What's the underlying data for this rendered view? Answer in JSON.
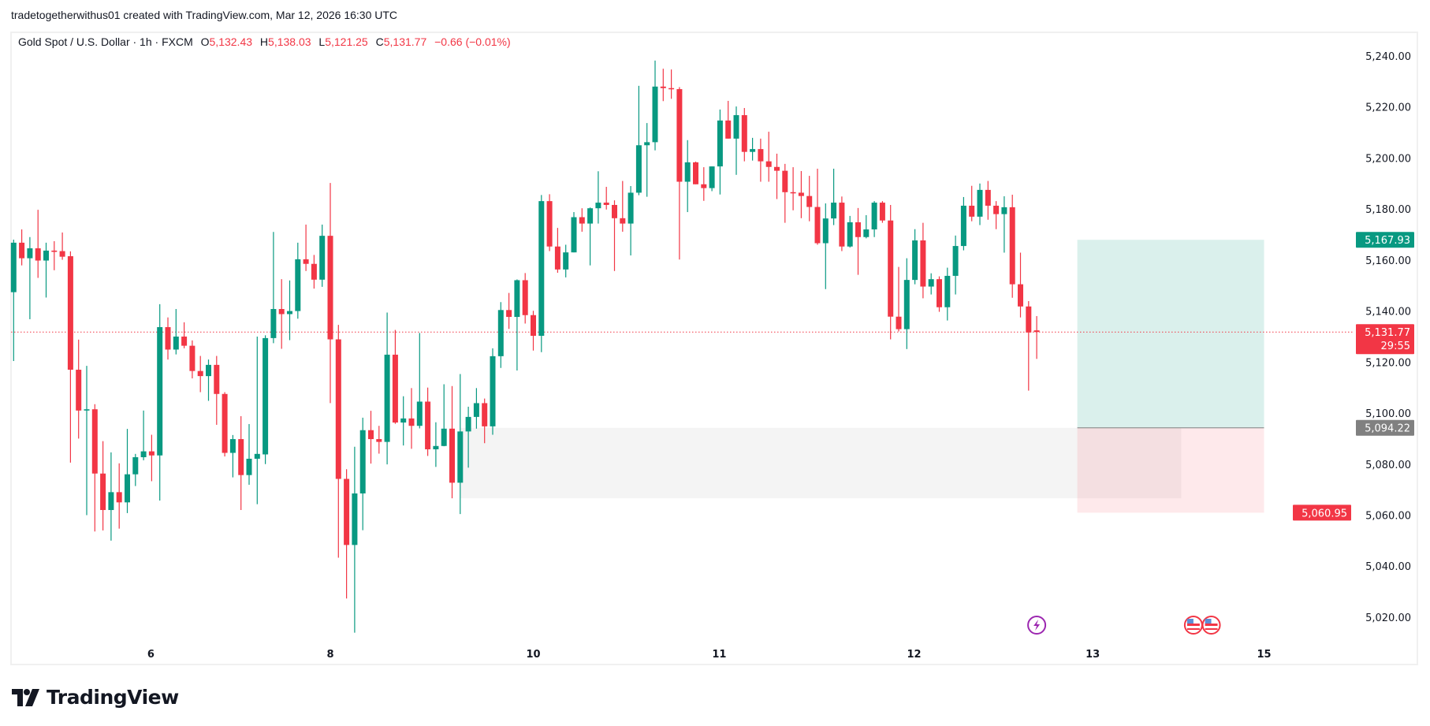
{
  "credit": "tradetogetherwithus01 created with TradingView.com, Mar 12, 2026 16:30 UTC",
  "legend": {
    "symbol": "Gold Spot / U.S. Dollar · 1h · FXCM",
    "o_label": "O",
    "o": "5,132.43",
    "h_label": "H",
    "h": "5,138.03",
    "l_label": "L",
    "l": "5,121.25",
    "c_label": "C",
    "c": "5,131.77",
    "change": "−0.66 (−0.01%)"
  },
  "logo": {
    "text": "TradingView"
  },
  "colors": {
    "up": "#089981",
    "down": "#F23645",
    "text": "#131722",
    "grid": "#f0f0f0",
    "entry": "#808080"
  },
  "chart_data": {
    "type": "candlestick",
    "symbol": "Gold Spot / U.S. Dollar",
    "interval": "1h",
    "ylim": [
      5010,
      5248
    ],
    "y_ticks": [
      "5,240.00",
      "5,220.00",
      "5,200.00",
      "5,180.00",
      "5,160.00",
      "5,140.00",
      "5,120.00",
      "5,100.00",
      "5,080.00",
      "5,060.00",
      "5,040.00",
      "5,020.00"
    ],
    "y_tick_values": [
      5240,
      5220,
      5200,
      5180,
      5160,
      5140,
      5120,
      5100,
      5080,
      5060,
      5040,
      5020
    ],
    "x_ticks": [
      {
        "label": "6",
        "bar": 16.9
      },
      {
        "label": "8",
        "bar": 39
      },
      {
        "label": "10",
        "bar": 64
      },
      {
        "label": "11",
        "bar": 86.9
      },
      {
        "label": "12",
        "bar": 110.9
      },
      {
        "label": "13",
        "bar": 132.9
      },
      {
        "label": "15",
        "bar": 154
      }
    ],
    "ohlc": [
      [
        5147.4,
        5168,
        5120.4,
        5166.8
      ],
      [
        5166.8,
        5172,
        5157.9,
        5160.7
      ],
      [
        5160.7,
        5169,
        5136.8,
        5164.6
      ],
      [
        5164.6,
        5179.7,
        5153,
        5159.8
      ],
      [
        5159.8,
        5166.8,
        5145.3,
        5163.7
      ],
      [
        5163.7,
        5167.4,
        5156,
        5163.2
      ],
      [
        5163.5,
        5170.8,
        5160.1,
        5161.3
      ],
      [
        5161.5,
        5163.4,
        5080.6,
        5117
      ],
      [
        5117,
        5128.8,
        5090,
        5101
      ],
      [
        5101,
        5118.5,
        5060,
        5101.5
      ],
      [
        5101.5,
        5103.5,
        5053.6,
        5076.3
      ],
      [
        5076.3,
        5089,
        5054,
        5062
      ],
      [
        5062,
        5084.6,
        5050,
        5069
      ],
      [
        5069,
        5080.3,
        5054.7,
        5065
      ],
      [
        5065,
        5093.8,
        5060.8,
        5076
      ],
      [
        5076,
        5084,
        5071.4,
        5082.7
      ],
      [
        5082.7,
        5101,
        5081.5,
        5085
      ],
      [
        5085,
        5091.5,
        5073.3,
        5083.4
      ],
      [
        5083.4,
        5142.7,
        5065.7,
        5133.7
      ],
      [
        5133.7,
        5137.5,
        5121,
        5124.9
      ],
      [
        5124.9,
        5140.8,
        5123,
        5130
      ],
      [
        5130,
        5135.6,
        5125.4,
        5126.4
      ],
      [
        5126.4,
        5128.5,
        5113.6,
        5116.5
      ],
      [
        5116.5,
        5122.4,
        5108.2,
        5114.5
      ],
      [
        5114.5,
        5121,
        5104.8,
        5118.9
      ],
      [
        5118.9,
        5122.4,
        5095.4,
        5107.5
      ],
      [
        5107.5,
        5108.2,
        5083,
        5084.4
      ],
      [
        5084.4,
        5091.4,
        5074.8,
        5089.8
      ],
      [
        5089.8,
        5098.8,
        5062,
        5075.7
      ],
      [
        5075.7,
        5095.7,
        5071.9,
        5082.1
      ],
      [
        5082.1,
        5130,
        5064.3,
        5084
      ],
      [
        5083.8,
        5130.5,
        5080,
        5129.4
      ],
      [
        5129.4,
        5171,
        5127.4,
        5140.8
      ],
      [
        5140.8,
        5152.5,
        5125.2,
        5138.8
      ],
      [
        5138.8,
        5152,
        5128.6,
        5140
      ],
      [
        5140,
        5166.8,
        5137,
        5160.3
      ],
      [
        5160.3,
        5173.9,
        5155.7,
        5158.5
      ],
      [
        5158.5,
        5162,
        5148.8,
        5152.3
      ],
      [
        5152.3,
        5173.9,
        5149.5,
        5169.5
      ],
      [
        5169.5,
        5190.2,
        5103.9,
        5128.9
      ],
      [
        5128.9,
        5134.6,
        5043.3,
        5074.2
      ],
      [
        5074.2,
        5078,
        5027.3,
        5048.3
      ],
      [
        5048.3,
        5086.8,
        5013.9,
        5068.5
      ],
      [
        5068.5,
        5098.2,
        5054.1,
        5093.3
      ],
      [
        5093.3,
        5100.9,
        5080.2,
        5089.8
      ],
      [
        5089.8,
        5095,
        5084.1,
        5088.7
      ],
      [
        5088.7,
        5139.4,
        5079.9,
        5122.9
      ],
      [
        5122.9,
        5132.6,
        5095.8,
        5096.3
      ],
      [
        5096.3,
        5106.6,
        5087.3,
        5097.9
      ],
      [
        5097.9,
        5109.8,
        5086,
        5095
      ],
      [
        5095,
        5131.4,
        5094,
        5104.5
      ],
      [
        5104.5,
        5110,
        5083.2,
        5085.8
      ],
      [
        5085.8,
        5096.4,
        5078.9,
        5087.1
      ],
      [
        5087.1,
        5111.3,
        5087,
        5093.9
      ],
      [
        5093.9,
        5110.6,
        5066.6,
        5072.7
      ],
      [
        5072.7,
        5115.3,
        5060.4,
        5092.8
      ],
      [
        5092.8,
        5102.5,
        5078.6,
        5098.5
      ],
      [
        5098.5,
        5109.8,
        5093.9,
        5103.9
      ],
      [
        5103.9,
        5105.7,
        5088.2,
        5094.8
      ],
      [
        5094.8,
        5125.4,
        5091.5,
        5122.3
      ],
      [
        5122.3,
        5143.5,
        5117.7,
        5140.4
      ],
      [
        5140.4,
        5147.1,
        5133,
        5137.7
      ],
      [
        5137.7,
        5152.4,
        5116.7,
        5152.1
      ],
      [
        5152.1,
        5154.9,
        5135.1,
        5138.4
      ],
      [
        5138.4,
        5140.1,
        5124.5,
        5130.3
      ],
      [
        5130.3,
        5185.5,
        5123.9,
        5183.1
      ],
      [
        5183.1,
        5185.8,
        5163.5,
        5165.3
      ],
      [
        5165.3,
        5172.6,
        5155,
        5156.3
      ],
      [
        5156.3,
        5166,
        5153.2,
        5163
      ],
      [
        5163,
        5178.8,
        5163,
        5176.8
      ],
      [
        5176.8,
        5180.3,
        5171.1,
        5174.3
      ],
      [
        5174.3,
        5180.6,
        5157.9,
        5180.3
      ],
      [
        5180.3,
        5194.8,
        5174.3,
        5182.5
      ],
      [
        5182.5,
        5188.7,
        5179.8,
        5181.6
      ],
      [
        5181.6,
        5183.4,
        5155.7,
        5176.4
      ],
      [
        5176.4,
        5191,
        5171.1,
        5174.3
      ],
      [
        5174.3,
        5189,
        5161.8,
        5186.4
      ],
      [
        5186.4,
        5228.3,
        5185.4,
        5205
      ],
      [
        5205,
        5213.7,
        5184.8,
        5206.2
      ],
      [
        5206.2,
        5238.2,
        5203,
        5228
      ],
      [
        5228,
        5235,
        5222.3,
        5227.4
      ],
      [
        5227.4,
        5234.7,
        5223.2,
        5227.2
      ],
      [
        5227,
        5227.8,
        5160.2,
        5190.7
      ],
      [
        5190.7,
        5207,
        5178.8,
        5198.3
      ],
      [
        5198.3,
        5198.6,
        5189.7,
        5189.7
      ],
      [
        5189.7,
        5196.4,
        5183.2,
        5188.2
      ],
      [
        5188.2,
        5196.7,
        5187,
        5196.7
      ],
      [
        5196.7,
        5219,
        5185.7,
        5214.7
      ],
      [
        5214.7,
        5222.4,
        5207.6,
        5207.6
      ],
      [
        5207.6,
        5220.2,
        5193.4,
        5216.8
      ],
      [
        5216.8,
        5219.6,
        5198.7,
        5202.4
      ],
      [
        5202.4,
        5207.9,
        5199,
        5203.5
      ],
      [
        5203.5,
        5207.6,
        5190.7,
        5198.7
      ],
      [
        5198.7,
        5210.3,
        5190.7,
        5196.5
      ],
      [
        5196.5,
        5201.7,
        5183.9,
        5195
      ],
      [
        5195,
        5197.7,
        5174.6,
        5186.6
      ],
      [
        5186.6,
        5196.4,
        5179.5,
        5186.4
      ],
      [
        5186.4,
        5194.9,
        5176.4,
        5185.1
      ],
      [
        5185.1,
        5193,
        5175.2,
        5180.8
      ],
      [
        5180.8,
        5195.8,
        5166,
        5166.6
      ],
      [
        5166.6,
        5182.2,
        5148.6,
        5176.3
      ],
      [
        5176.3,
        5195.8,
        5173.7,
        5182.5
      ],
      [
        5182.5,
        5184.9,
        5163.5,
        5165.3
      ],
      [
        5165.3,
        5177.3,
        5164.9,
        5174.8
      ],
      [
        5174.8,
        5180.4,
        5154.2,
        5169
      ],
      [
        5169,
        5177.6,
        5168.5,
        5172
      ],
      [
        5172,
        5183.1,
        5169,
        5182.5
      ],
      [
        5182.5,
        5183.1,
        5174.6,
        5175.5
      ],
      [
        5175.5,
        5181.6,
        5128.9,
        5137.8
      ],
      [
        5137.8,
        5157.3,
        5132,
        5132.9
      ],
      [
        5132.9,
        5160.7,
        5125.1,
        5152.2
      ],
      [
        5152.2,
        5172.1,
        5150.5,
        5167.7
      ],
      [
        5167.7,
        5174.6,
        5145,
        5149.6
      ],
      [
        5149.6,
        5154.8,
        5146.5,
        5152.5
      ],
      [
        5152.5,
        5153.6,
        5139.7,
        5141.5
      ],
      [
        5141.5,
        5157,
        5136.3,
        5153.8
      ],
      [
        5153.8,
        5169.6,
        5146.5,
        5165.5
      ],
      [
        5165.5,
        5184.7,
        5163.8,
        5181.3
      ],
      [
        5181.3,
        5189.1,
        5175.2,
        5177
      ],
      [
        5177,
        5190,
        5173.7,
        5187.5
      ],
      [
        5187.5,
        5191,
        5175.8,
        5181.3
      ],
      [
        5181.3,
        5183.1,
        5172.1,
        5178
      ],
      [
        5178,
        5185,
        5162.9,
        5180.7
      ],
      [
        5180.7,
        5185.6,
        5145.2,
        5150.5
      ],
      [
        5150.5,
        5162.9,
        5137.5,
        5141.8
      ],
      [
        5141.8,
        5143.9,
        5108.8,
        5131.6
      ],
      [
        5132.43,
        5138.03,
        5121.25,
        5131.77
      ]
    ],
    "last_price": {
      "value": 5131.77,
      "label": "5,131.77",
      "countdown": "29:55"
    },
    "gray_zone": {
      "top": 5094.22,
      "bottom": 5066.6,
      "from_bar": 55,
      "to_bar": 143.8
    },
    "long_position": {
      "from_bar": 131,
      "to_bar": 154,
      "target": 5167.93,
      "target_label": "5,167.93",
      "entry": 5094.22,
      "entry_label": "5,094.22",
      "stop": 5060.95,
      "stop_label": "5,060.95"
    },
    "events": [
      {
        "type": "lightning-event",
        "bar": 126
      },
      {
        "type": "us-flag-event",
        "bar": 145.3
      },
      {
        "type": "us-flag-event",
        "bar": 147.5
      }
    ]
  }
}
